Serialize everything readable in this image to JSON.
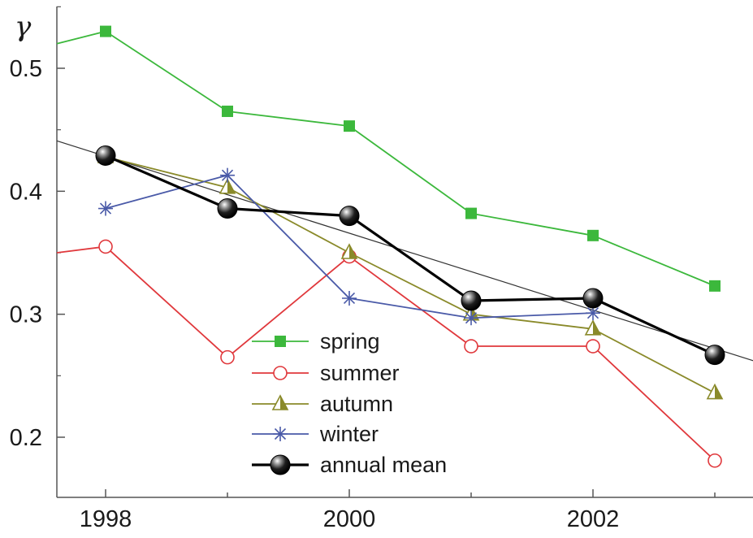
{
  "chart_data": {
    "type": "line",
    "title": "",
    "xlabel": "",
    "ylabel": "γ",
    "x": [
      1997.0,
      1998,
      1999,
      2000,
      2001,
      2002,
      2003
    ],
    "xlim": [
      1997.6,
      2003.45
    ],
    "ylim": [
      0.15,
      0.55
    ],
    "x_ticks": [
      1998,
      2000,
      2002
    ],
    "x_tick_labels": [
      "1998",
      "2000",
      "2002"
    ],
    "x_minor_ticks": [
      1998,
      1999,
      2000,
      2001,
      2002,
      2003
    ],
    "y_ticks": [
      0.2,
      0.3,
      0.4,
      0.5
    ],
    "y_tick_labels": [
      "0.2",
      "0.3",
      "0.4",
      "0.5"
    ],
    "grid": false,
    "legend_position": "bottom-center",
    "series": [
      {
        "name": "spring",
        "color": "#3cb83c",
        "marker": "filled-square",
        "points": [
          [
            1997.6,
            0.52
          ],
          [
            1998,
            0.53
          ],
          [
            1999,
            0.465
          ],
          [
            2000,
            0.453
          ],
          [
            2001,
            0.382
          ],
          [
            2002,
            0.364
          ],
          [
            2003,
            0.323
          ]
        ]
      },
      {
        "name": "summer",
        "color": "#e0383c",
        "marker": "open-circle",
        "points": [
          [
            1997.6,
            0.35
          ],
          [
            1998,
            0.355
          ],
          [
            1999,
            0.265
          ],
          [
            2000,
            0.347
          ],
          [
            2001,
            0.274
          ],
          [
            2002,
            0.274
          ],
          [
            2003,
            0.181
          ]
        ]
      },
      {
        "name": "autumn",
        "color": "#8a8a2a",
        "marker": "half-filled-triangle",
        "points": [
          [
            1998,
            0.428
          ],
          [
            1999,
            0.403
          ],
          [
            2000,
            0.35
          ],
          [
            2001,
            0.3
          ],
          [
            2002,
            0.288
          ],
          [
            2003,
            0.236
          ]
        ]
      },
      {
        "name": "winter",
        "color": "#4a5aa8",
        "marker": "asterisk",
        "points": [
          [
            1998,
            0.386
          ],
          [
            1999,
            0.413
          ],
          [
            2000,
            0.313
          ],
          [
            2001,
            0.297
          ],
          [
            2002,
            0.301
          ]
        ]
      },
      {
        "name": "annual mean",
        "color": "#000000",
        "marker": "black-sphere",
        "points": [
          [
            1998,
            0.429
          ],
          [
            1999,
            0.386
          ],
          [
            2000,
            0.38
          ],
          [
            2001,
            0.311
          ],
          [
            2002,
            0.313
          ],
          [
            2003,
            0.267
          ]
        ]
      }
    ],
    "trend_line": {
      "color": "#333333",
      "points": [
        [
          1997.6,
          0.441
        ],
        [
          2003.45,
          0.258
        ]
      ]
    }
  }
}
